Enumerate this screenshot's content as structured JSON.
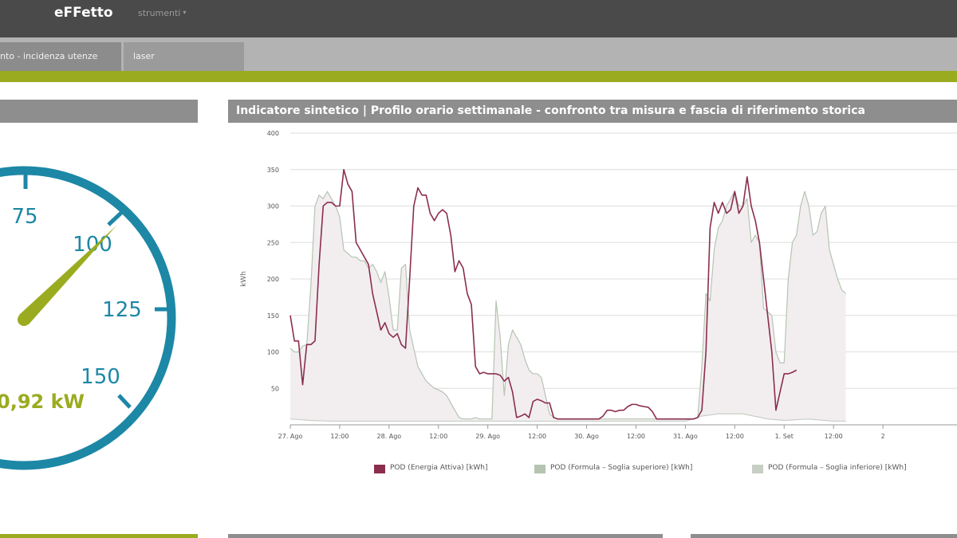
{
  "app": {
    "brand": "eFFetto",
    "menu_label": "strumenti"
  },
  "tabs": [
    {
      "label": "nto - incidenza utenze"
    },
    {
      "label": "laser"
    }
  ],
  "gauge": {
    "ticks": [
      "75",
      "100",
      "125",
      "150"
    ],
    "value_label": "0,92 kW",
    "colors": {
      "dial": "#1d87a6",
      "needle": "#9bab20",
      "text": "#9bab20"
    }
  },
  "chart_panel": {
    "title": "Indicatore sintetico | Profilo orario settimanale - confronto tra misura e fascia di riferimento storica"
  },
  "chart_data": {
    "type": "line",
    "ylabel": "kWh",
    "ylim": [
      0,
      400
    ],
    "yticks": [
      "50",
      "100",
      "150",
      "200",
      "250",
      "300",
      "350",
      "400"
    ],
    "xlim": [
      0,
      168
    ],
    "xticks": [
      {
        "label": "27. Ago",
        "h": 0
      },
      {
        "label": "12:00",
        "h": 12
      },
      {
        "label": "28. Ago",
        "h": 24
      },
      {
        "label": "12:00",
        "h": 36
      },
      {
        "label": "29. Ago",
        "h": 48
      },
      {
        "label": "12:00",
        "h": 60
      },
      {
        "label": "30. Ago",
        "h": 72
      },
      {
        "label": "12:00",
        "h": 84
      },
      {
        "label": "31. Ago",
        "h": 96
      },
      {
        "label": "12:00",
        "h": 108
      },
      {
        "label": "1. Set",
        "h": 120
      },
      {
        "label": "12:00",
        "h": 132
      },
      {
        "label": "2",
        "h": 144
      }
    ],
    "series": [
      {
        "name": "POD (Energia Attiva) [kWh]",
        "color": "#8b2e4e",
        "points": [
          [
            0,
            150
          ],
          [
            1,
            115
          ],
          [
            2,
            115
          ],
          [
            3,
            55
          ],
          [
            4,
            110
          ],
          [
            5,
            110
          ],
          [
            6,
            115
          ],
          [
            7,
            220
          ],
          [
            8,
            300
          ],
          [
            9,
            305
          ],
          [
            10,
            305
          ],
          [
            11,
            300
          ],
          [
            12,
            300
          ],
          [
            13,
            350
          ],
          [
            14,
            330
          ],
          [
            15,
            320
          ],
          [
            16,
            250
          ],
          [
            17,
            240
          ],
          [
            18,
            230
          ],
          [
            19,
            220
          ],
          [
            20,
            180
          ],
          [
            21,
            155
          ],
          [
            22,
            130
          ],
          [
            23,
            140
          ],
          [
            24,
            125
          ],
          [
            25,
            120
          ],
          [
            26,
            125
          ],
          [
            27,
            110
          ],
          [
            28,
            105
          ],
          [
            29,
            200
          ],
          [
            30,
            300
          ],
          [
            31,
            325
          ],
          [
            32,
            315
          ],
          [
            33,
            315
          ],
          [
            34,
            290
          ],
          [
            35,
            280
          ],
          [
            36,
            290
          ],
          [
            37,
            295
          ],
          [
            38,
            290
          ],
          [
            39,
            260
          ],
          [
            40,
            210
          ],
          [
            41,
            225
          ],
          [
            42,
            215
          ],
          [
            43,
            180
          ],
          [
            44,
            165
          ],
          [
            45,
            80
          ],
          [
            46,
            70
          ],
          [
            47,
            72
          ],
          [
            48,
            70
          ],
          [
            49,
            70
          ],
          [
            50,
            70
          ],
          [
            51,
            68
          ],
          [
            52,
            60
          ],
          [
            53,
            65
          ],
          [
            54,
            45
          ],
          [
            55,
            10
          ],
          [
            56,
            12
          ],
          [
            57,
            15
          ],
          [
            58,
            10
          ],
          [
            59,
            32
          ],
          [
            60,
            35
          ],
          [
            61,
            33
          ],
          [
            62,
            30
          ],
          [
            63,
            30
          ],
          [
            64,
            10
          ],
          [
            65,
            8
          ],
          [
            66,
            8
          ],
          [
            67,
            8
          ],
          [
            68,
            8
          ],
          [
            69,
            8
          ],
          [
            70,
            8
          ],
          [
            71,
            8
          ],
          [
            72,
            8
          ],
          [
            73,
            8
          ],
          [
            74,
            8
          ],
          [
            75,
            8
          ],
          [
            76,
            12
          ],
          [
            77,
            20
          ],
          [
            78,
            20
          ],
          [
            79,
            18
          ],
          [
            80,
            20
          ],
          [
            81,
            20
          ],
          [
            82,
            25
          ],
          [
            83,
            28
          ],
          [
            84,
            28
          ],
          [
            85,
            26
          ],
          [
            86,
            25
          ],
          [
            87,
            24
          ],
          [
            88,
            18
          ],
          [
            89,
            8
          ],
          [
            90,
            8
          ],
          [
            91,
            8
          ],
          [
            92,
            8
          ],
          [
            93,
            8
          ],
          [
            94,
            8
          ],
          [
            95,
            8
          ],
          [
            96,
            8
          ],
          [
            97,
            8
          ],
          [
            98,
            8
          ],
          [
            99,
            10
          ],
          [
            100,
            20
          ],
          [
            101,
            100
          ],
          [
            102,
            270
          ],
          [
            103,
            305
          ],
          [
            104,
            290
          ],
          [
            105,
            305
          ],
          [
            106,
            290
          ],
          [
            107,
            295
          ],
          [
            108,
            320
          ],
          [
            109,
            290
          ],
          [
            110,
            300
          ],
          [
            111,
            340
          ],
          [
            112,
            300
          ],
          [
            113,
            280
          ],
          [
            114,
            250
          ],
          [
            115,
            200
          ],
          [
            116,
            150
          ],
          [
            117,
            100
          ],
          [
            118,
            20
          ],
          [
            119,
            45
          ],
          [
            120,
            70
          ],
          [
            121,
            70
          ],
          [
            122,
            72
          ],
          [
            123,
            75
          ]
        ]
      },
      {
        "name": "POD (Formula – Soglia superiore) [kWh]",
        "color": "#b5c4b1",
        "points": [
          [
            0,
            105
          ],
          [
            1,
            100
          ],
          [
            2,
            100
          ],
          [
            3,
            108
          ],
          [
            4,
            110
          ],
          [
            5,
            190
          ],
          [
            6,
            300
          ],
          [
            7,
            315
          ],
          [
            8,
            310
          ],
          [
            9,
            320
          ],
          [
            10,
            310
          ],
          [
            11,
            300
          ],
          [
            12,
            285
          ],
          [
            13,
            240
          ],
          [
            14,
            235
          ],
          [
            15,
            230
          ],
          [
            16,
            230
          ],
          [
            17,
            225
          ],
          [
            18,
            225
          ],
          [
            19,
            215
          ],
          [
            20,
            220
          ],
          [
            21,
            210
          ],
          [
            22,
            195
          ],
          [
            23,
            210
          ],
          [
            24,
            175
          ],
          [
            25,
            130
          ],
          [
            26,
            130
          ],
          [
            27,
            215
          ],
          [
            28,
            220
          ],
          [
            29,
            130
          ],
          [
            30,
            105
          ],
          [
            31,
            80
          ],
          [
            32,
            70
          ],
          [
            33,
            60
          ],
          [
            34,
            55
          ],
          [
            35,
            50
          ],
          [
            36,
            48
          ],
          [
            37,
            45
          ],
          [
            38,
            40
          ],
          [
            39,
            30
          ],
          [
            40,
            20
          ],
          [
            41,
            10
          ],
          [
            42,
            8
          ],
          [
            43,
            8
          ],
          [
            44,
            8
          ],
          [
            45,
            10
          ],
          [
            46,
            8
          ],
          [
            47,
            8
          ],
          [
            48,
            8
          ],
          [
            49,
            8
          ],
          [
            50,
            170
          ],
          [
            51,
            120
          ],
          [
            52,
            40
          ],
          [
            53,
            110
          ],
          [
            54,
            130
          ],
          [
            55,
            120
          ],
          [
            56,
            110
          ],
          [
            57,
            90
          ],
          [
            58,
            75
          ],
          [
            59,
            70
          ],
          [
            60,
            70
          ],
          [
            61,
            65
          ],
          [
            62,
            40
          ],
          [
            63,
            15
          ],
          [
            64,
            10
          ],
          [
            65,
            8
          ],
          [
            66,
            8
          ],
          [
            67,
            8
          ],
          [
            68,
            8
          ],
          [
            69,
            8
          ],
          [
            70,
            8
          ],
          [
            71,
            8
          ],
          [
            72,
            8
          ],
          [
            73,
            8
          ],
          [
            74,
            8
          ],
          [
            75,
            8
          ],
          [
            76,
            8
          ],
          [
            77,
            8
          ],
          [
            78,
            8
          ],
          [
            79,
            8
          ],
          [
            80,
            8
          ],
          [
            81,
            8
          ],
          [
            82,
            8
          ],
          [
            83,
            8
          ],
          [
            84,
            8
          ],
          [
            85,
            8
          ],
          [
            86,
            8
          ],
          [
            87,
            8
          ],
          [
            88,
            8
          ],
          [
            89,
            8
          ],
          [
            90,
            8
          ],
          [
            91,
            8
          ],
          [
            92,
            8
          ],
          [
            93,
            8
          ],
          [
            94,
            8
          ],
          [
            95,
            8
          ],
          [
            96,
            8
          ],
          [
            97,
            8
          ],
          [
            98,
            8
          ],
          [
            99,
            10
          ],
          [
            100,
            80
          ],
          [
            101,
            180
          ],
          [
            102,
            170
          ],
          [
            103,
            240
          ],
          [
            104,
            270
          ],
          [
            105,
            280
          ],
          [
            106,
            300
          ],
          [
            107,
            310
          ],
          [
            108,
            320
          ],
          [
            109,
            300
          ],
          [
            110,
            300
          ],
          [
            111,
            310
          ],
          [
            112,
            250
          ],
          [
            113,
            260
          ],
          [
            114,
            250
          ],
          [
            115,
            160
          ],
          [
            116,
            155
          ],
          [
            117,
            150
          ],
          [
            118,
            100
          ],
          [
            119,
            85
          ],
          [
            120,
            85
          ],
          [
            121,
            200
          ],
          [
            122,
            250
          ],
          [
            123,
            260
          ],
          [
            124,
            300
          ],
          [
            125,
            320
          ],
          [
            126,
            300
          ],
          [
            127,
            260
          ],
          [
            128,
            265
          ],
          [
            129,
            290
          ],
          [
            130,
            300
          ],
          [
            131,
            240
          ],
          [
            132,
            220
          ],
          [
            133,
            200
          ],
          [
            134,
            185
          ],
          [
            135,
            180
          ]
        ]
      },
      {
        "name": "POD (Formula – Soglia inferiore) [kWh]",
        "color": "#c7cec4",
        "points": [
          [
            0,
            8
          ],
          [
            5,
            6
          ],
          [
            10,
            5
          ],
          [
            20,
            5
          ],
          [
            30,
            5
          ],
          [
            40,
            5
          ],
          [
            50,
            5
          ],
          [
            60,
            5
          ],
          [
            70,
            5
          ],
          [
            80,
            5
          ],
          [
            90,
            5
          ],
          [
            96,
            5
          ],
          [
            100,
            12
          ],
          [
            104,
            15
          ],
          [
            110,
            15
          ],
          [
            116,
            8
          ],
          [
            120,
            6
          ],
          [
            126,
            8
          ],
          [
            132,
            5
          ],
          [
            135,
            5
          ]
        ]
      }
    ]
  }
}
